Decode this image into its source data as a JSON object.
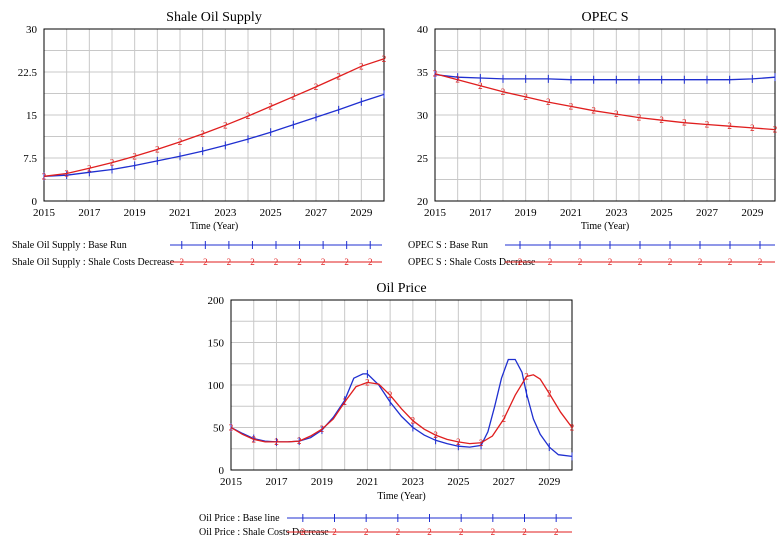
{
  "colors": {
    "base": "#1f2fd0",
    "shale": "#e01e1e",
    "grid": "#c8c8c8"
  },
  "chart_data": [
    {
      "type": "line",
      "title": "Shale Oil Supply",
      "xlabel": "Time (Year)",
      "ylabel": "",
      "xlim": [
        2015,
        2030
      ],
      "ylim": [
        0,
        30
      ],
      "xticks": [
        "2015",
        "2017",
        "2019",
        "2021",
        "2023",
        "2025",
        "2027",
        "2029"
      ],
      "yticks": [
        "0",
        "7.5",
        "15",
        "22.5",
        "30"
      ],
      "series": [
        {
          "name": "Shale Oil Supply : Base Run",
          "marker": "+",
          "x": [
            2015,
            2016,
            2017,
            2018,
            2019,
            2020,
            2021,
            2022,
            2023,
            2024,
            2025,
            2026,
            2027,
            2028,
            2029,
            2030
          ],
          "values": [
            4.3,
            4.5,
            5.0,
            5.5,
            6.2,
            7.0,
            7.8,
            8.7,
            9.7,
            10.8,
            12.0,
            13.3,
            14.6,
            15.9,
            17.3,
            18.6
          ]
        },
        {
          "name": "Shale Oil Supply : Shale Costs Decrease",
          "marker": "2",
          "x": [
            2015,
            2016,
            2017,
            2018,
            2019,
            2020,
            2021,
            2022,
            2023,
            2024,
            2025,
            2026,
            2027,
            2028,
            2029,
            2030
          ],
          "values": [
            4.3,
            4.8,
            5.7,
            6.7,
            7.8,
            9.0,
            10.3,
            11.7,
            13.2,
            14.8,
            16.5,
            18.2,
            19.9,
            21.7,
            23.5,
            24.8
          ]
        }
      ],
      "legend": [
        {
          "label": "Shale Oil Supply : Base Run",
          "marker": "1"
        },
        {
          "label": "Shale Oil Supply : Shale Costs Decrease",
          "marker": "2"
        }
      ]
    },
    {
      "type": "line",
      "title": "OPEC S",
      "xlabel": "Time (Year)",
      "ylabel": "",
      "xlim": [
        2015,
        2030
      ],
      "ylim": [
        20,
        40
      ],
      "xticks": [
        "2015",
        "2017",
        "2019",
        "2021",
        "2023",
        "2025",
        "2027",
        "2029"
      ],
      "yticks": [
        "20",
        "25",
        "30",
        "35",
        "40"
      ],
      "series": [
        {
          "name": "OPEC S : Base Run",
          "marker": "+",
          "x": [
            2015,
            2016,
            2017,
            2018,
            2019,
            2020,
            2021,
            2022,
            2023,
            2024,
            2025,
            2026,
            2027,
            2028,
            2029,
            2030
          ],
          "values": [
            34.7,
            34.4,
            34.3,
            34.2,
            34.2,
            34.2,
            34.1,
            34.1,
            34.1,
            34.1,
            34.1,
            34.1,
            34.1,
            34.1,
            34.2,
            34.4
          ]
        },
        {
          "name": "OPEC S : Shale Costs Decrease",
          "marker": "2",
          "x": [
            2015,
            2016,
            2017,
            2018,
            2019,
            2020,
            2021,
            2022,
            2023,
            2024,
            2025,
            2026,
            2027,
            2028,
            2029,
            2030
          ],
          "values": [
            34.8,
            34.1,
            33.4,
            32.7,
            32.1,
            31.5,
            31.0,
            30.5,
            30.1,
            29.7,
            29.4,
            29.1,
            28.9,
            28.7,
            28.5,
            28.3
          ]
        }
      ],
      "legend": [
        {
          "label": "OPEC S : Base Run",
          "marker": "1"
        },
        {
          "label": "OPEC S : Shale Costs Decrease",
          "marker": "2"
        }
      ]
    },
    {
      "type": "line",
      "title": "Oil Price",
      "xlabel": "Time (Year)",
      "ylabel": "",
      "xlim": [
        2015,
        2030
      ],
      "ylim": [
        0,
        200
      ],
      "xticks": [
        "2015",
        "2017",
        "2019",
        "2021",
        "2023",
        "2025",
        "2027",
        "2029"
      ],
      "yticks": [
        "0",
        "50",
        "100",
        "150",
        "200"
      ],
      "series": [
        {
          "name": "Oil Price : Base line",
          "marker": "+",
          "x": [
            2015,
            2015.5,
            2016,
            2016.5,
            2017,
            2017.5,
            2018,
            2018.5,
            2019,
            2019.5,
            2020,
            2020.4,
            2020.8,
            2021,
            2021.5,
            2022,
            2022.5,
            2023,
            2023.5,
            2024,
            2024.5,
            2025,
            2025.5,
            2026,
            2026.3,
            2026.6,
            2026.9,
            2027.2,
            2027.5,
            2027.8,
            2028,
            2028.3,
            2028.6,
            2029,
            2029.4,
            2030
          ],
          "values": [
            50,
            43,
            37,
            34,
            33,
            33,
            34,
            38,
            47,
            62,
            82,
            108,
            113,
            113,
            100,
            80,
            63,
            50,
            41,
            35,
            31,
            28,
            27,
            29,
            45,
            75,
            108,
            130,
            130,
            115,
            90,
            60,
            42,
            27,
            18,
            16
          ]
        },
        {
          "name": "Oil Price : Shale Costs Decrease",
          "marker": "2",
          "x": [
            2015,
            2015.5,
            2016,
            2016.5,
            2017,
            2017.5,
            2018,
            2018.5,
            2019,
            2019.5,
            2020,
            2020.5,
            2021,
            2021.5,
            2022,
            2022.5,
            2023,
            2023.5,
            2024,
            2024.5,
            2025,
            2025.5,
            2026,
            2026.5,
            2027,
            2027.5,
            2028,
            2028.3,
            2028.6,
            2029,
            2029.5,
            2030
          ],
          "values": [
            50,
            42,
            36,
            33,
            33,
            33,
            34,
            40,
            48,
            60,
            80,
            98,
            103,
            101,
            88,
            72,
            58,
            48,
            41,
            36,
            33,
            31,
            32,
            40,
            60,
            88,
            110,
            112,
            107,
            90,
            68,
            50
          ]
        }
      ],
      "legend": [
        {
          "label": "Oil Price : Base line",
          "marker": "1"
        },
        {
          "label": "Oil Price : Shale Costs Decrease",
          "marker": "2"
        }
      ]
    }
  ]
}
